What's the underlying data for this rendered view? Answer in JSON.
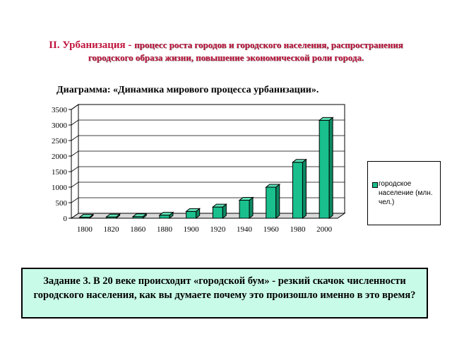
{
  "heading": {
    "lead": "II. Урбанизация - ",
    "rest": "процесс роста городов и городского населения, распространения городского образа жизни, повышение экономической роли города."
  },
  "diagram_title": "Диаграмма: «Динамика мирового процесса урбанизации».",
  "task": "Задание 3. В 20 веке происходит «городской бум» - резкий скачок численности городского населения, как вы думаете почему это произошло именно в это время?",
  "colors": {
    "bar_front": "#19c08e",
    "bar_side": "#0d8a64",
    "bar_top": "#5ee0b6"
  },
  "chart_data": {
    "type": "bar",
    "categories": [
      "1800",
      "1820",
      "1860",
      "1880",
      "1900",
      "1920",
      "1940",
      "1960",
      "1980",
      "2000"
    ],
    "series": [
      {
        "name": "городское население (млн. чел.)",
        "values": [
          30,
          40,
          50,
          100,
          220,
          360,
          580,
          1000,
          1800,
          3150
        ]
      }
    ],
    "ylim": [
      0,
      3500
    ],
    "yticks": [
      "0",
      "500",
      "1000",
      "1500",
      "2000",
      "2500",
      "3000",
      "3500"
    ],
    "grid": true,
    "legend_position": "right"
  }
}
